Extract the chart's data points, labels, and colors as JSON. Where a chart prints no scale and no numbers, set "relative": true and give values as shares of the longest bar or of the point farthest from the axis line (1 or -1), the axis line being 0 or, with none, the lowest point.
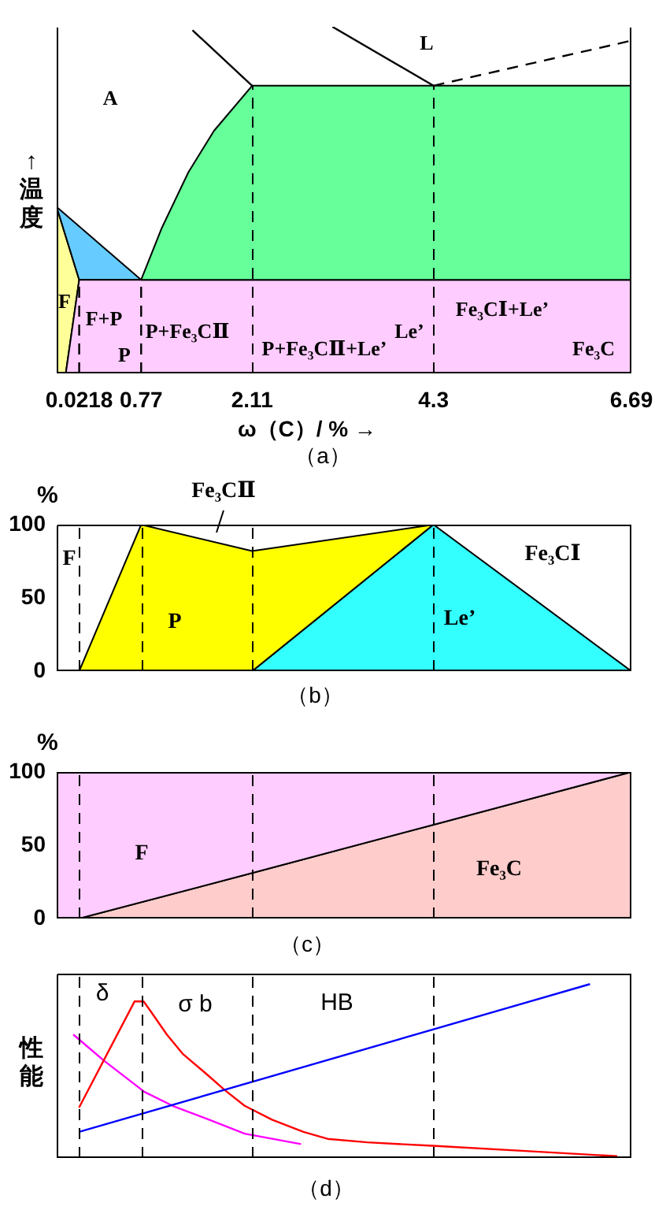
{
  "chart_data": [
    {
      "type": "area",
      "relative": true,
      "title": "（a）",
      "xlabel": "ω（C）/ % →",
      "ylabel": "↑温度",
      "xlim": [
        -0.25,
        6.69
      ],
      "xticks": [
        0.0218,
        0.77,
        2.11,
        4.3,
        6.69
      ],
      "tick_labels": "x",
      "series": [
        {
          "color": "#ffff99",
          "x": [
            -0.25,
            0.0218,
            -0.14,
            -0.25
          ],
          "values": [
            0.48,
            0.27,
            0,
            0
          ]
        },
        {
          "color": "#66ccff",
          "x": [
            -0.25,
            0.77,
            0.0218
          ],
          "values": [
            0.48,
            0.27,
            0.27
          ]
        },
        {
          "color": "#ffccff",
          "x": [
            0.0218,
            6.69,
            6.69,
            -0.14
          ],
          "values": [
            0.27,
            0.27,
            0,
            0
          ]
        },
        {
          "color": "#66ff99",
          "x": [
            0.77,
            1.02,
            1.34,
            1.65,
            2.11,
            6.69,
            6.69
          ],
          "values": [
            0.27,
            0.42,
            0.58,
            0.7,
            0.83,
            0.83,
            0.27
          ]
        },
        {
          "type": "line",
          "color": "#000000",
          "x": [
            1.39,
            2.11
          ],
          "values": [
            0.99,
            0.83
          ]
        },
        {
          "type": "line",
          "color": "#000000",
          "x": [
            3.08,
            4.3
          ],
          "values": [
            1,
            0.83
          ]
        },
        {
          "type": "line",
          "color": "#000000",
          "line_style": "dashed",
          "x": [
            4.3,
            6.69
          ],
          "values": [
            0.83,
            0.96
          ]
        },
        {
          "type": "line",
          "color": "#000000",
          "line_style": "dashed",
          "x": [
            0.0218,
            0.0218
          ],
          "values": [
            0,
            0.27
          ]
        },
        {
          "type": "line",
          "color": "#000000",
          "line_style": "dashed",
          "x": [
            0.77,
            0.77
          ],
          "values": [
            0,
            0.27
          ]
        }
      ],
      "ref_lines": [
        {
          "axis": "x",
          "value": 2.11,
          "line_style": "dashed"
        },
        {
          "axis": "x",
          "value": 4.3,
          "line_style": "dashed"
        }
      ],
      "annotations": [
        "A",
        "L",
        "F",
        "F+P",
        "P",
        "P+Fe₃CⅡ",
        "P+Fe₃CⅡ+Le’",
        "Le’",
        "Fe₃CⅠ+Le’",
        "Fe₃C"
      ]
    },
    {
      "type": "area",
      "stacked": true,
      "title": "（b）",
      "ylabel": "%",
      "xlim": [
        -0.25,
        6.69
      ],
      "ylim": [
        0,
        100
      ],
      "yticks": [
        0,
        50,
        100
      ],
      "tick_labels": "y",
      "x": [
        0.0218,
        0.77,
        2.11,
        4.3,
        6.69
      ],
      "series": [
        {
          "color": "#33ffff",
          "values": [
            null,
            null,
            0,
            100,
            0
          ]
        },
        {
          "color": "#ffff00",
          "values": [
            0,
            100,
            82,
            0,
            null
          ]
        }
      ],
      "ref_lines": [
        {
          "axis": "x",
          "value": 0.0218,
          "line_style": "dashed"
        },
        {
          "axis": "x",
          "value": 0.77,
          "line_style": "dashed"
        },
        {
          "axis": "x",
          "value": 2.11,
          "line_style": "dashed"
        },
        {
          "axis": "x",
          "value": 4.3,
          "line_style": "dashed"
        }
      ],
      "annotations": [
        "F",
        "P",
        "Le’",
        "Fe₃CⅠ",
        "Fe₃CⅡ"
      ]
    },
    {
      "type": "area",
      "stacked": true,
      "title": "（c）",
      "ylabel": "%",
      "xlim": [
        -0.25,
        6.69
      ],
      "ylim": [
        0,
        100
      ],
      "yticks": [
        0,
        50,
        100
      ],
      "tick_labels": "y",
      "x": [
        -0.25,
        0.0218,
        2.11,
        4.3,
        6.69
      ],
      "series": [
        {
          "color": "#ffcccc",
          "values": [
            null,
            0,
            31,
            64,
            100
          ]
        },
        {
          "color": "#ffccff",
          "values": [
            100,
            100,
            69,
            36,
            0
          ]
        }
      ],
      "ref_lines": [
        {
          "axis": "x",
          "value": 0.0218,
          "line_style": "dashed"
        },
        {
          "axis": "x",
          "value": 2.11,
          "line_style": "dashed"
        },
        {
          "axis": "x",
          "value": 4.3,
          "line_style": "dashed"
        }
      ],
      "annotations": [
        "F",
        "Fe₃C"
      ]
    },
    {
      "type": "line",
      "relative": true,
      "title": "（d）",
      "ylabel": "性能",
      "xlim": [
        -0.25,
        6.69
      ],
      "tick_labels": false,
      "series": [
        {
          "color": "#ff00ff",
          "x": [
            -0.05,
            0.32,
            0.81,
            1.15,
            1.59,
            2.02,
            2.7
          ],
          "values": [
            0.71,
            0.56,
            0.38,
            0.3,
            0.22,
            0.14,
            0.08
          ]
        },
        {
          "color": "#ff0000",
          "x": [
            0.02,
            0.69,
            0.8,
            0.89,
            1.08,
            1.27,
            1.59,
            1.78,
            2.02,
            2.35,
            2.73,
            3.02,
            3.5,
            4.29,
            5.41,
            6.52
          ],
          "values": [
            0.29,
            0.9,
            0.9,
            0.84,
            0.71,
            0.6,
            0.47,
            0.39,
            0.3,
            0.22,
            0.15,
            0.11,
            0.09,
            0.07,
            0.04,
            0.01
          ]
        },
        {
          "color": "#0000ff",
          "x": [
            0.02,
            6.19
          ],
          "values": [
            0.15,
            1
          ]
        }
      ],
      "ref_lines": [
        {
          "axis": "x",
          "value": 0.0218,
          "line_style": "dashed"
        },
        {
          "axis": "x",
          "value": 0.77,
          "line_style": "dashed"
        },
        {
          "axis": "x",
          "value": 2.11,
          "line_style": "dashed"
        },
        {
          "axis": "x",
          "value": 4.3,
          "line_style": "dashed"
        }
      ],
      "annotations": [
        "δ",
        "σ b",
        "HB"
      ]
    }
  ]
}
